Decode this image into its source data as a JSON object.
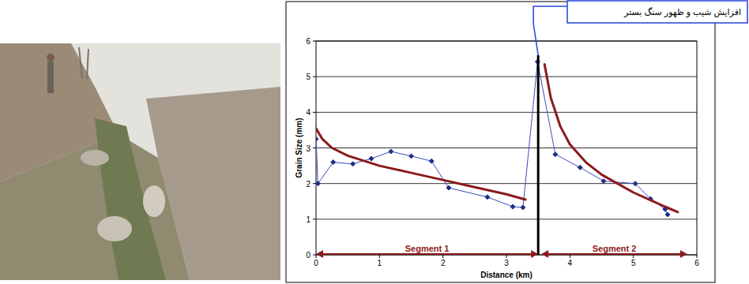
{
  "chart_data": {
    "type": "line",
    "x_label": "Distance (km)",
    "y_label": "Grain Size (mm)",
    "xlim": [
      0,
      6
    ],
    "ylim": [
      0,
      6
    ],
    "xticks": [
      0,
      1,
      2,
      3,
      4,
      5,
      6
    ],
    "yticks": [
      0,
      1,
      2,
      3,
      4,
      5,
      6
    ],
    "grid": true,
    "series": [
      {
        "type": "line",
        "color": "#3b4cc0",
        "marker": "diamond",
        "line_style": "solid",
        "x": [
          0,
          0.03,
          0.27,
          0.58,
          0.87,
          1.18,
          1.5,
          1.82,
          2.09,
          2.7,
          3.1,
          3.26,
          3.49,
          3.77,
          4.16,
          4.53,
          5.03,
          5.27,
          5.5,
          5.54
        ],
        "values": [
          3.25,
          2.0,
          2.6,
          2.55,
          2.7,
          2.9,
          2.77,
          2.63,
          1.88,
          1.62,
          1.35,
          1.33,
          5.42,
          2.82,
          2.45,
          2.07,
          2.0,
          1.57,
          1.28,
          1.13
        ]
      },
      {
        "type": "trend",
        "color": "#8b1a1a",
        "marker": "none",
        "line_style": "solid",
        "x": [
          0,
          0.1,
          0.25,
          0.5,
          1,
          1.5,
          2,
          2.5,
          3,
          3.3
        ],
        "values": [
          3.55,
          3.25,
          3.0,
          2.78,
          2.5,
          2.3,
          2.1,
          1.9,
          1.7,
          1.55
        ]
      },
      {
        "type": "trend",
        "color": "#8b1a1a",
        "marker": "none",
        "line_style": "solid",
        "x": [
          3.6,
          3.7,
          3.85,
          4,
          4.25,
          4.5,
          5,
          5.5,
          5.7
        ],
        "values": [
          5.35,
          4.4,
          3.6,
          3.1,
          2.6,
          2.25,
          1.75,
          1.35,
          1.2
        ]
      }
    ],
    "segments": [
      {
        "label": "Segment 1",
        "from": 0,
        "to": 3.5
      },
      {
        "label": "Segment 2",
        "from": 3.55,
        "to": 5.85
      }
    ],
    "annotation": {
      "text": "افزایش شیب و ظهور سنگ بستر",
      "x": 3.5,
      "y": 5.6
    }
  }
}
